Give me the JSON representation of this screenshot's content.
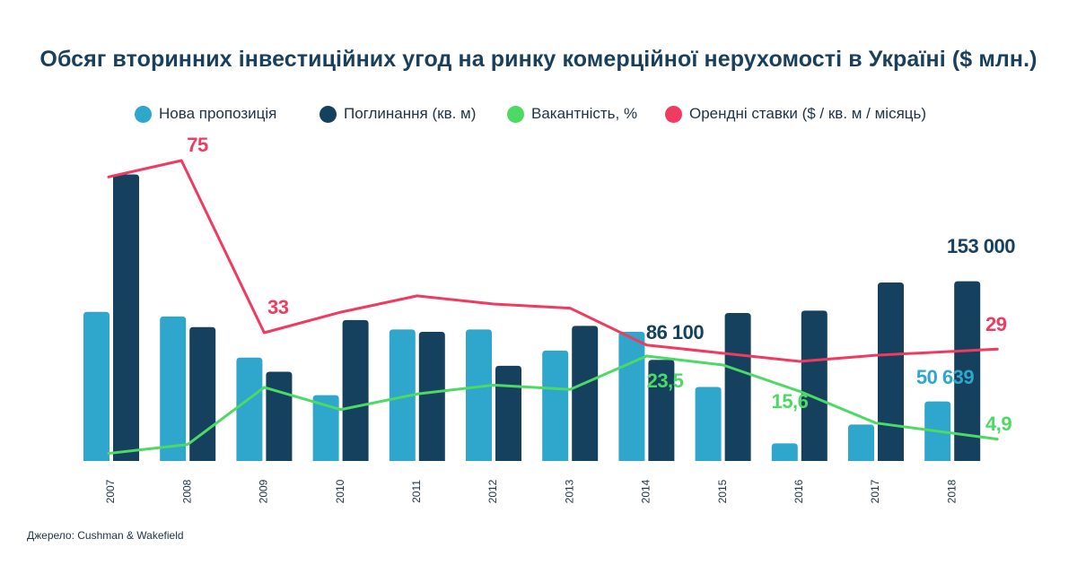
{
  "chart_data": {
    "type": "bar",
    "title": "Обсяг вторинних інвестиційних угод на ринку комерційної нерухомості в Україні ($ млн.)",
    "categories": [
      "2007",
      "2008",
      "2009",
      "2010",
      "2011",
      "2012",
      "2013",
      "2014",
      "2015",
      "2016",
      "2017",
      "2018"
    ],
    "series": [
      {
        "name": "Нова пропозиція",
        "kind": "bar",
        "color": "#2fa6cc",
        "values": [
          127000,
          123000,
          88000,
          56000,
          112000,
          112000,
          94000,
          110000,
          63000,
          15000,
          31000,
          50639
        ]
      },
      {
        "name": "Поглинання (кв. м)",
        "kind": "bar",
        "color": "#16415e",
        "values": [
          244000,
          114000,
          76000,
          120000,
          110000,
          81000,
          115000,
          86100,
          126000,
          128000,
          152000,
          153000
        ]
      },
      {
        "name": "Вакантність, %",
        "kind": "line",
        "color": "#4cd964",
        "values": [
          1.7,
          3.7,
          16.5,
          11.5,
          15,
          17,
          16,
          23.5,
          21.5,
          15.6,
          8.5,
          4.9
        ]
      },
      {
        "name": "Орендні ставки ($ / кв. м / місяць)",
        "kind": "line",
        "color": "#f03a5f",
        "values": [
          71,
          75,
          33,
          38,
          42,
          40,
          39,
          30,
          28,
          26,
          27.5,
          29
        ]
      }
    ],
    "data_labels": [
      {
        "series": 1,
        "index": 7,
        "text": "86 100"
      },
      {
        "series": 1,
        "index": 11,
        "text": "153 000"
      },
      {
        "series": 0,
        "index": 11,
        "text": "50 639"
      },
      {
        "series": 3,
        "index": 1,
        "text": "75"
      },
      {
        "series": 3,
        "index": 2,
        "text": "33"
      },
      {
        "series": 3,
        "index": 11,
        "text": "29"
      },
      {
        "series": 2,
        "index": 7,
        "text": "23,5"
      },
      {
        "series": 2,
        "index": 9,
        "text": "15,6"
      },
      {
        "series": 2,
        "index": 11,
        "text": "4,9"
      }
    ],
    "legend_position": "top",
    "grid": false
  },
  "source": "Джерело: Cushman & Wakefield"
}
